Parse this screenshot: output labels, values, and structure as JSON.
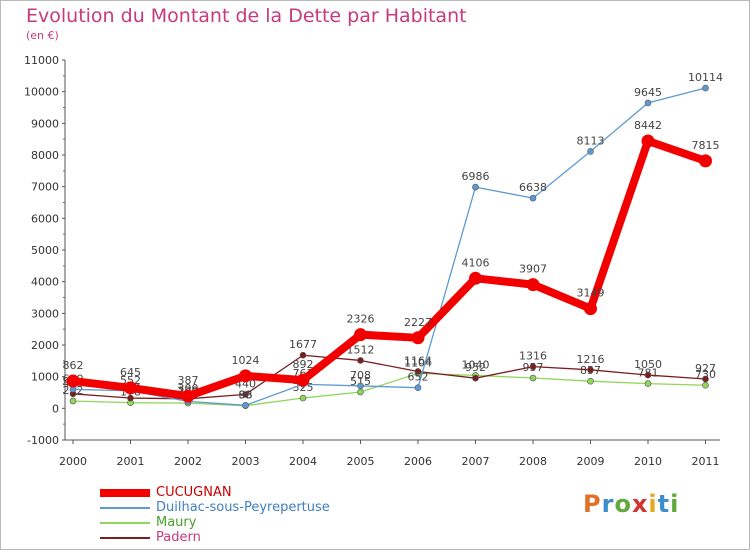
{
  "title": "Evolution du Montant de la Dette par Habitant",
  "subtitle": "(en €)",
  "logo": {
    "letters": [
      "P",
      "r",
      "o",
      "x",
      "i",
      "t",
      "i"
    ],
    "colors": [
      "#e0702a",
      "#3d8ecb",
      "#62a83c",
      "#d0342c",
      "#e8a81e",
      "#3d8ecb",
      "#62a83c"
    ]
  },
  "chart_data": {
    "type": "line",
    "categories": [
      "2000",
      "2001",
      "2002",
      "2003",
      "2004",
      "2005",
      "2006",
      "2007",
      "2008",
      "2009",
      "2010",
      "2011"
    ],
    "ylim": [
      -1000,
      11000
    ],
    "yticks": [
      "-1000",
      "0",
      "1000",
      "2000",
      "3000",
      "4000",
      "5000",
      "6000",
      "7000",
      "8000",
      "9000",
      "10000",
      "11000"
    ],
    "grid": false,
    "legend_placement": "bottom-left",
    "series": [
      {
        "name": "Maury",
        "color": "#90d65a",
        "values": [
          232,
          178,
          165,
          83,
          325,
          515,
          1104,
          1040,
          957,
          857,
          781,
          730
        ],
        "labels": [
          "232",
          "178",
          "165",
          "83",
          "325",
          "515",
          "1104",
          "1040",
          "957",
          "857",
          "781",
          "730"
        ]
      },
      {
        "name": "Padern",
        "color": "#7a1f1f",
        "values": [
          459,
          324,
          300,
          440,
          1677,
          1512,
          1164,
          952,
          1316,
          1216,
          1050,
          927
        ],
        "labels": [
          "459",
          "324",
          "300",
          "440",
          "1677",
          "1512",
          "1164",
          "952",
          "1316",
          "1216",
          "1050",
          "927"
        ]
      },
      {
        "name": "Duilhac-sous-Peyrepertuse",
        "color": "#5e9ad1",
        "values": [
          600,
          552,
          220,
          96,
          761,
          708,
          652,
          6986,
          6638,
          8113,
          9645,
          10114
        ],
        "labels": [
          "600",
          "552",
          "220",
          "96",
          "761",
          "708",
          "652",
          "6986",
          "6638",
          "8113",
          "9645",
          "10114"
        ]
      },
      {
        "name": "CUCUGNAN",
        "color": "#f20000",
        "values": [
          862,
          645,
          387,
          1024,
          892,
          2326,
          2227,
          4106,
          3907,
          3149,
          8442,
          7815
        ],
        "labels": [
          "862",
          "645",
          "387",
          "1024",
          "892",
          "2326",
          "2227",
          "4106",
          "3907",
          "3149",
          "8442",
          "7815"
        ]
      }
    ],
    "legend": [
      {
        "name": "CUCUGNAN",
        "color": "#f20000",
        "text_color": "#c80000"
      },
      {
        "name": "Duilhac-sous-Peyrepertuse",
        "color": "#5e9ad1",
        "text_color": "#3f7fc2"
      },
      {
        "name": "Maury",
        "color": "#90d65a",
        "text_color": "#4aa02c"
      },
      {
        "name": "Padern",
        "color": "#7a1f1f",
        "text_color": "#c63a7e"
      }
    ]
  }
}
